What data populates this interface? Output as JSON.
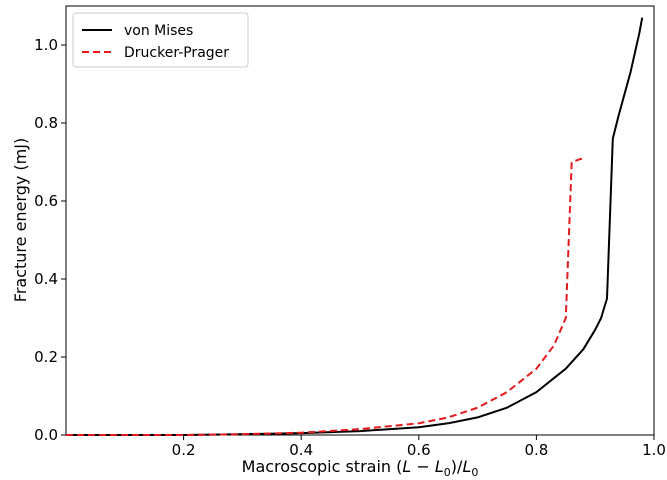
{
  "chart_data": {
    "type": "line",
    "xlabel_parts": [
      "Macroscopic strain (",
      "L",
      " − ",
      "L",
      "0",
      ")/",
      "L",
      "0"
    ],
    "ylabel": "Fracture energy (mJ)",
    "xlim": [
      0.0,
      1.0
    ],
    "ylim": [
      0.0,
      1.1
    ],
    "xticks": [
      0.2,
      0.4,
      0.6,
      0.8,
      1.0
    ],
    "xtick_labels": [
      "0.2",
      "0.4",
      "0.6",
      "0.8",
      "1.0"
    ],
    "yticks": [
      0.0,
      0.2,
      0.4,
      0.6,
      0.8,
      1.0
    ],
    "ytick_labels": [
      "0.0",
      "0.2",
      "0.4",
      "0.6",
      "0.8",
      "1.0"
    ],
    "legend_position": "top-left",
    "series": [
      {
        "name": "von Mises",
        "color": "#000000",
        "style": "solid",
        "x": [
          0.0,
          0.2,
          0.3,
          0.4,
          0.5,
          0.6,
          0.65,
          0.7,
          0.75,
          0.8,
          0.85,
          0.88,
          0.9,
          0.91,
          0.92,
          0.93,
          0.94,
          0.96,
          0.975,
          0.98
        ],
        "y": [
          0.0,
          0.0,
          0.002,
          0.005,
          0.01,
          0.02,
          0.03,
          0.045,
          0.07,
          0.11,
          0.17,
          0.22,
          0.27,
          0.3,
          0.35,
          0.76,
          0.82,
          0.93,
          1.03,
          1.07
        ]
      },
      {
        "name": "Drucker-Prager",
        "color": "#e41a1c",
        "style": "dashed",
        "x": [
          0.0,
          0.2,
          0.3,
          0.4,
          0.5,
          0.6,
          0.65,
          0.7,
          0.75,
          0.8,
          0.83,
          0.85,
          0.86,
          0.88
        ],
        "y": [
          0.0,
          0.0,
          0.002,
          0.006,
          0.015,
          0.03,
          0.045,
          0.07,
          0.11,
          0.17,
          0.23,
          0.3,
          0.7,
          0.71
        ]
      }
    ]
  }
}
